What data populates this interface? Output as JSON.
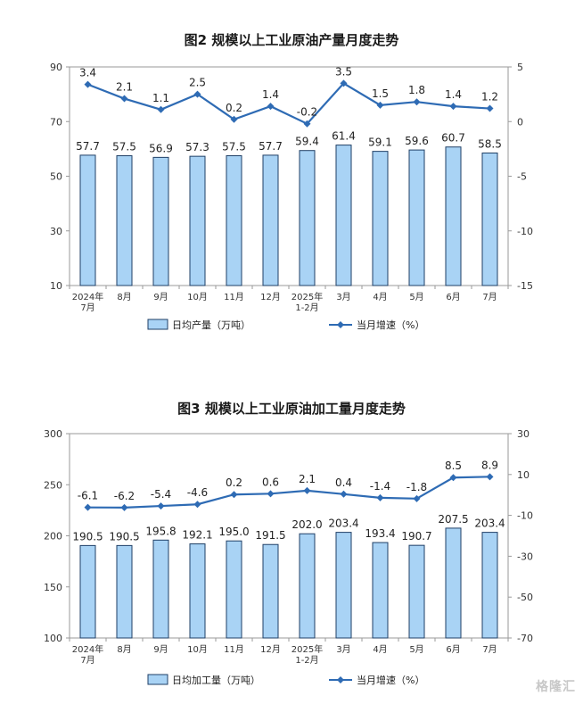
{
  "chart_data": [
    {
      "type": "bar",
      "title": "图2  规模以上工业原油产量月度走势",
      "categories": [
        "2024年\n7月",
        "8月",
        "9月",
        "10月",
        "11月",
        "12月",
        "2025年\n1-2月",
        "3月",
        "4月",
        "5月",
        "6月",
        "7月"
      ],
      "ylim": [
        10,
        90
      ],
      "yticks": [
        10,
        30,
        50,
        70,
        90
      ],
      "y2lim": [
        -15,
        5
      ],
      "y2ticks": [
        -15,
        -10,
        -5,
        0,
        5
      ],
      "series": [
        {
          "name": "日均产量（万吨）",
          "type": "bar",
          "axis": "left",
          "values": [
            57.7,
            57.5,
            56.9,
            57.3,
            57.5,
            57.7,
            59.4,
            61.4,
            59.1,
            59.6,
            60.7,
            58.5
          ],
          "labels": [
            "57.7",
            "57.5",
            "56.9",
            "57.3",
            "57.5",
            "57.7",
            "59.4",
            "61.4",
            "59.1",
            "59.6",
            "60.7",
            "58.5"
          ]
        },
        {
          "name": "当月增速（%）",
          "type": "line",
          "axis": "right",
          "values": [
            3.4,
            2.1,
            1.1,
            2.5,
            0.2,
            1.4,
            -0.2,
            3.5,
            1.5,
            1.8,
            1.4,
            1.2
          ],
          "labels": [
            "3.4",
            "2.1",
            "1.1",
            "2.5",
            "0.2",
            "1.4",
            "-0.2",
            "3.5",
            "1.5",
            "1.8",
            "1.4",
            "1.2"
          ]
        }
      ],
      "colors": {
        "bar": "#a9d3f5",
        "bar_edge": "#1f3f66",
        "line": "#2e6bb4"
      },
      "legend": "bottom"
    },
    {
      "type": "bar",
      "title": "图3  规模以上工业原油加工量月度走势",
      "categories": [
        "2024年\n7月",
        "8月",
        "9月",
        "10月",
        "11月",
        "12月",
        "2025年\n1-2月",
        "3月",
        "4月",
        "5月",
        "6月",
        "7月"
      ],
      "ylim": [
        100,
        300
      ],
      "yticks": [
        100,
        150,
        200,
        250,
        300
      ],
      "y2lim": [
        -70,
        30
      ],
      "y2ticks": [
        -70,
        -50,
        -30,
        -10,
        10,
        30
      ],
      "series": [
        {
          "name": "日均加工量（万吨）",
          "type": "bar",
          "axis": "left",
          "values": [
            190.5,
            190.5,
            195.8,
            192.1,
            195.0,
            191.5,
            202.0,
            203.4,
            193.4,
            190.7,
            207.5,
            203.4
          ],
          "labels": [
            "190.5",
            "190.5",
            "195.8",
            "192.1",
            "195.0",
            "191.5",
            "202.0",
            "203.4",
            "193.4",
            "190.7",
            "207.5",
            "203.4"
          ]
        },
        {
          "name": "当月增速（%）",
          "type": "line",
          "axis": "right",
          "values": [
            -6.1,
            -6.2,
            -5.4,
            -4.6,
            0.2,
            0.6,
            2.1,
            0.4,
            -1.4,
            -1.8,
            8.5,
            8.9
          ],
          "labels": [
            "-6.1",
            "-6.2",
            "-5.4",
            "-4.6",
            "0.2",
            "0.6",
            "2.1",
            "0.4",
            "-1.4",
            "-1.8",
            "8.5",
            "8.9"
          ]
        }
      ],
      "colors": {
        "bar": "#a9d3f5",
        "bar_edge": "#1f3f66",
        "line": "#2e6bb4"
      },
      "legend": "bottom"
    }
  ],
  "watermark": "格隆汇"
}
